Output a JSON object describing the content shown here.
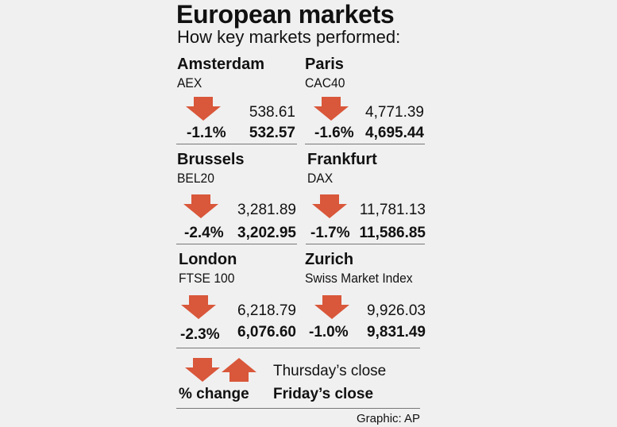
{
  "header": {
    "title": "European markets",
    "subtitle": "How key markets performed:"
  },
  "markets": [
    {
      "city": "Amsterdam",
      "index": "AEX",
      "previous": "538.61",
      "close": "532.57",
      "change": "-1.1%",
      "direction": "down"
    },
    {
      "city": "Paris",
      "index": "CAC40",
      "previous": "4,771.39",
      "close": "4,695.44",
      "change": "-1.6%",
      "direction": "down"
    },
    {
      "city": "Brussels",
      "index": "BEL20",
      "previous": "3,281.89",
      "close": "3,202.95",
      "change": "-2.4%",
      "direction": "down"
    },
    {
      "city": "Frankfurt",
      "index": "DAX",
      "previous": "11,781.13",
      "close": "11,586.85",
      "change": "-1.7%",
      "direction": "down"
    },
    {
      "city": "London",
      "index": "FTSE 100",
      "previous": "6,218.79",
      "close": "6,076.60",
      "change": "-2.3%",
      "direction": "down"
    },
    {
      "city": "Zurich",
      "index": "Swiss Market Index",
      "previous": "9,926.03",
      "close": "9,831.49",
      "change": "-1.0%",
      "direction": "down"
    }
  ],
  "legend": {
    "previous_label": "Thursday’s close",
    "change_label": "% change",
    "close_label": "Friday’s close"
  },
  "credit": "Graphic: AP",
  "colors": {
    "arrow": "#d9573a",
    "text": "#111111",
    "background": "#f0f0f0",
    "rule": "#777777"
  }
}
